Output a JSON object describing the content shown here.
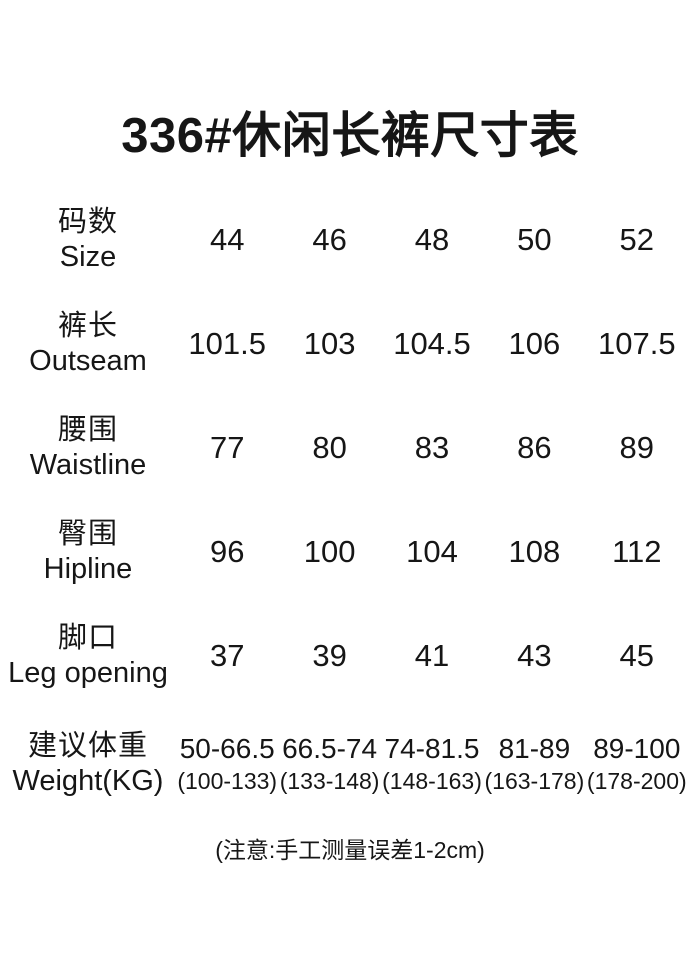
{
  "page": {
    "title": "336#休闲长裤尺寸表",
    "note": "(注意:手工测量误差1-2cm)"
  },
  "table": {
    "rows": [
      {
        "cn": "码数",
        "en": "Size",
        "values": [
          "44",
          "46",
          "48",
          "50",
          "52"
        ]
      },
      {
        "cn": "裤长",
        "en": "Outseam",
        "values": [
          "101.5",
          "103",
          "104.5",
          "106",
          "107.5"
        ]
      },
      {
        "cn": "腰围",
        "en": "Waistline",
        "values": [
          "77",
          "80",
          "83",
          "86",
          "89"
        ]
      },
      {
        "cn": "臀围",
        "en": "Hipline",
        "values": [
          "96",
          "100",
          "104",
          "108",
          "112"
        ]
      },
      {
        "cn": "脚口",
        "en": "Leg opening",
        "values": [
          "37",
          "39",
          "41",
          "43",
          "45"
        ]
      },
      {
        "cn": "建议体重",
        "en": "Weight(KG)",
        "values": [
          "50-66.5",
          "66.5-74",
          "74-81.5",
          "81-89",
          "89-100"
        ],
        "sub_values": [
          "(100-133)",
          "(133-148)",
          "(148-163)",
          "(163-178)",
          "(178-200)"
        ]
      }
    ]
  }
}
